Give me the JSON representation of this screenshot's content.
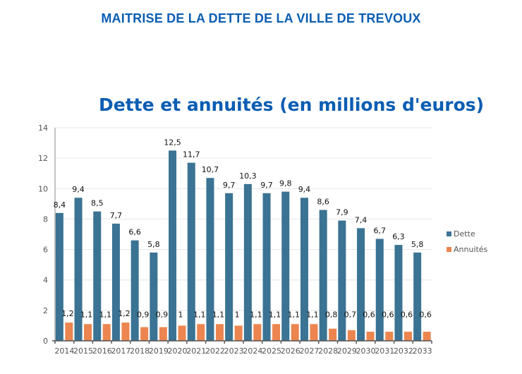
{
  "header": {
    "main_title": "MAITRISE DE LA DETTE DE LA VILLE DE TREVOUX"
  },
  "chart_data": {
    "type": "bar",
    "title": "Dette et annuités (en millions d'euros)",
    "xlabel": "",
    "ylabel": "",
    "ylim": [
      0,
      14
    ],
    "yticks": [
      0,
      2,
      4,
      6,
      8,
      10,
      12,
      14
    ],
    "grid": true,
    "legend_position": "right",
    "categories": [
      "2014",
      "2015",
      "2016",
      "2017",
      "2018",
      "2019",
      "2020",
      "2021",
      "2022",
      "2023",
      "2024",
      "2025",
      "2026",
      "2027",
      "2028",
      "2029",
      "2030",
      "2031",
      "2032",
      "2033"
    ],
    "series": [
      {
        "name": "Dette",
        "color": "#3a7393",
        "values": [
          8.4,
          9.4,
          8.5,
          7.7,
          6.6,
          5.8,
          12.5,
          11.7,
          10.7,
          9.7,
          10.3,
          9.7,
          9.8,
          9.4,
          8.6,
          7.9,
          7.4,
          6.7,
          6.3,
          5.8
        ],
        "labels": [
          "8,4",
          "9,4",
          "8,5",
          "7,7",
          "6,6",
          "5,8",
          "12,5",
          "11,7",
          "10,7",
          "9,7",
          "10,3",
          "9,7",
          "9,8",
          "9,4",
          "8,6",
          "7,9",
          "7,4",
          "6,7",
          "6,3",
          "5,8"
        ]
      },
      {
        "name": "Annuités",
        "color": "#ec8550",
        "values": [
          1.2,
          1.1,
          1.1,
          1.2,
          0.9,
          0.9,
          1,
          1.1,
          1.1,
          1,
          1.1,
          1.1,
          1.1,
          1.1,
          0.8,
          0.7,
          0.6,
          0.6,
          0.6,
          0.6
        ],
        "labels": [
          "1,2",
          "1,1",
          "1,1",
          "1,2",
          "0,9",
          "0,9",
          "1",
          "1,1",
          "1,1",
          "1",
          "1,1",
          "1,1",
          "1,1",
          "1,1",
          "0,8",
          "0,7",
          "0,6",
          "0,6",
          "0,6",
          "0,6"
        ]
      }
    ]
  }
}
